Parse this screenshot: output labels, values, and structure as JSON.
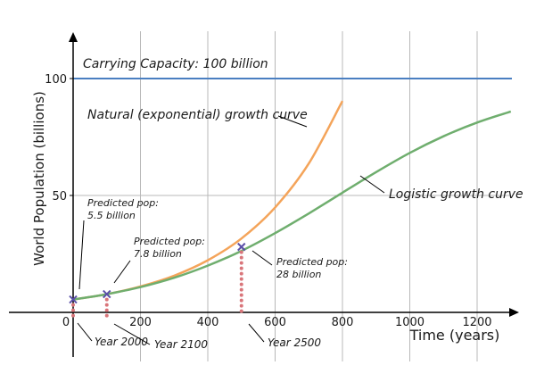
{
  "chart_data": {
    "type": "line",
    "xlabel": "Time (years)",
    "ylabel": "World Population (billions)",
    "xlim": [
      0,
      1300
    ],
    "ylim": [
      -20,
      120
    ],
    "x_ticks": [
      "200",
      "400",
      "600",
      "800",
      "1000",
      "1200"
    ],
    "y_ticks": [
      "50",
      "100"
    ],
    "origin_label": "0",
    "grid": "vertical lines at each x tick; horizontal line at 50",
    "series": [
      {
        "type": "exponential",
        "color": "#f4a45a",
        "x": [
          0,
          100,
          200,
          300,
          400,
          500,
          600,
          700,
          800
        ],
        "y": [
          5.5,
          7.8,
          11.1,
          15.7,
          22.3,
          31.6,
          44.9,
          63.7,
          90.4
        ]
      },
      {
        "type": "logistic",
        "color": "#6fae6e",
        "x": [
          0,
          100,
          200,
          300,
          400,
          500,
          600,
          700,
          800,
          900,
          1000,
          1100,
          1200,
          1300
        ],
        "y": [
          5.5,
          7.8,
          10.8,
          14.8,
          20.0,
          26.3,
          33.9,
          42.3,
          51.2,
          60.0,
          68.2,
          75.3,
          81.2,
          85.9
        ]
      }
    ],
    "carrying_capacity": {
      "value": 100,
      "color": "#4a7fc1"
    },
    "markers": [
      {
        "x": 0,
        "y": 5.5,
        "pop_line1": "Predicted pop:",
        "pop_line2": "5.5 billion",
        "year": "Year 2000"
      },
      {
        "x": 100,
        "y": 7.8,
        "pop_line1": "Predicted pop:",
        "pop_line2": "7.8 billion",
        "year": "Year 2100"
      },
      {
        "x": 500,
        "y": 28,
        "pop_line1": "Predicted pop:",
        "pop_line2": "28 billion",
        "year": "Year 2500"
      }
    ],
    "annotations": {
      "capacity": "Carrying Capacity: 100 billion",
      "natural": "Natural (exponential) growth curve",
      "logistic": "Logistic growth curve"
    },
    "colors": {
      "marker": "#5b4fa8",
      "dotted": "#d9757a"
    }
  }
}
